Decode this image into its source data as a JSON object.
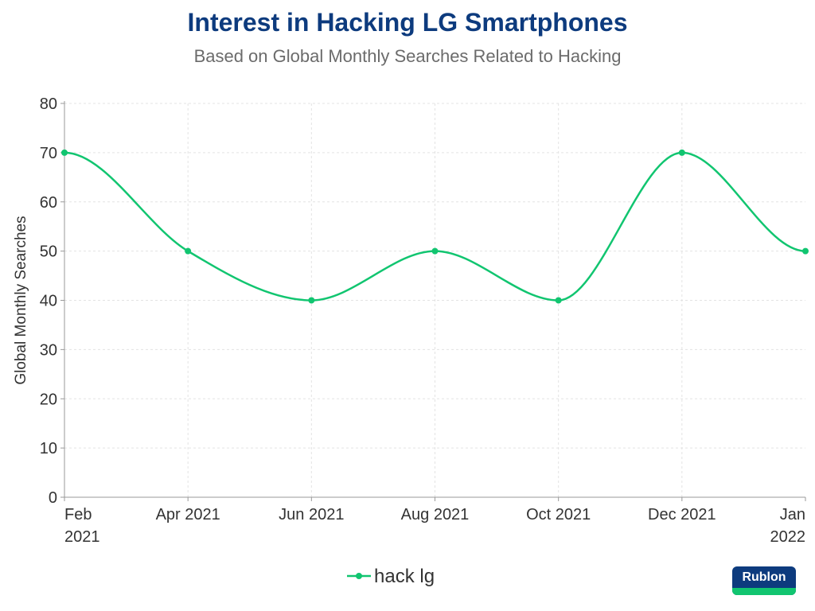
{
  "chart_data": {
    "type": "line",
    "title": "Interest in Hacking LG Smartphones",
    "subtitle": "Based on Global Monthly Searches Related to Hacking",
    "xlabel": "",
    "ylabel": "Global Monthly Searches",
    "categories": [
      [
        "Feb",
        "2021"
      ],
      [
        "Apr 2021"
      ],
      [
        "Jun 2021"
      ],
      [
        "Aug 2021"
      ],
      [
        "Oct 2021"
      ],
      [
        "Dec 2021"
      ],
      [
        "Jan",
        "2022"
      ]
    ],
    "series": [
      {
        "name": "hack lg",
        "color": "#11c570",
        "values": [
          70,
          50,
          40,
          50,
          40,
          70,
          50
        ]
      }
    ],
    "ylim": [
      0,
      80
    ],
    "yticks": [
      0,
      10,
      20,
      30,
      40,
      50,
      60,
      70,
      80
    ],
    "grid": true,
    "legend": "bottom-center"
  },
  "logo": "Rublon"
}
